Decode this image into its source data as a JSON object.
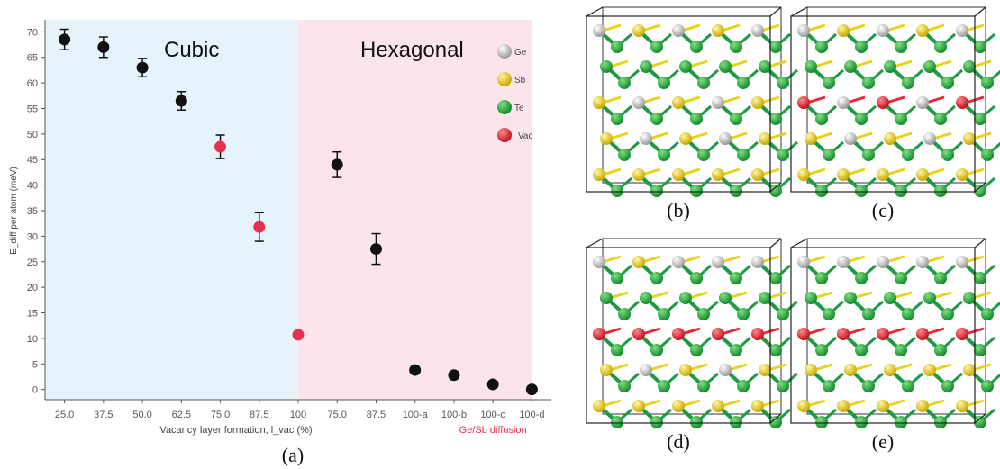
{
  "chart_data": {
    "type": "scatter",
    "panel_label": "(a)",
    "title": "",
    "xlabel": "Vacancy layer formation, l_vac (%)",
    "ylabel": "E_diff per atom (meV)",
    "ylim": [
      -2,
      72
    ],
    "yticks": [
      0,
      5,
      10,
      15,
      20,
      25,
      30,
      35,
      40,
      45,
      50,
      55,
      60,
      65,
      70
    ],
    "categories": [
      "25.0",
      "37.5",
      "50.0",
      "62.5",
      "75.0",
      "87.5",
      "100",
      "75.0",
      "87.5",
      "100-a",
      "100-b",
      "100-c",
      "100-d"
    ],
    "grid": false,
    "regions": [
      {
        "label": "Cubic",
        "from": 0,
        "to": 6.5,
        "color": "#e6f3fb"
      },
      {
        "label": "Hexagonal",
        "from": 6.5,
        "to": 12.5,
        "color": "#fbe5ea"
      }
    ],
    "annotation": "Ge/Sb diffusion",
    "series": [
      {
        "color": "#111111",
        "points": [
          {
            "i": 0,
            "y": 68.5,
            "err": 2.0
          },
          {
            "i": 1,
            "y": 67.0,
            "err": 2.0
          },
          {
            "i": 2,
            "y": 63.0,
            "err": 1.8
          },
          {
            "i": 3,
            "y": 56.5,
            "err": 1.8
          },
          {
            "i": 7,
            "y": 44.0,
            "err": 2.5
          },
          {
            "i": 8,
            "y": 27.5,
            "err": 3.0
          },
          {
            "i": 9,
            "y": 3.8,
            "err": 0
          },
          {
            "i": 10,
            "y": 2.8,
            "err": 0
          },
          {
            "i": 11,
            "y": 1.0,
            "err": 0
          },
          {
            "i": 12,
            "y": 0.0,
            "err": 0
          }
        ]
      },
      {
        "color": "#e8304f",
        "points": [
          {
            "i": 4,
            "y": 47.5,
            "err": 2.3
          },
          {
            "i": 5,
            "y": 31.8,
            "err": 2.8
          },
          {
            "i": 6,
            "y": 10.7,
            "err": 0
          }
        ]
      }
    ],
    "legend": [
      {
        "label": "Ge",
        "color": "#e2e2e2"
      },
      {
        "label": "Sb",
        "color": "#e8d21a"
      },
      {
        "label": "Te",
        "color": "#1e9a45"
      },
      {
        "label": "Vac",
        "color": "#e8283a"
      }
    ]
  },
  "structures": [
    {
      "label": "(b)",
      "top": [
        "ge",
        "sb",
        "ge",
        "sb"
      ],
      "mid": "mixed",
      "row2": "mixed"
    },
    {
      "label": "(c)",
      "top": [
        "ge",
        "sb",
        "ge",
        "sb"
      ],
      "mid": "vac-mixed",
      "row2": "mixed"
    },
    {
      "label": "(d)",
      "top": [
        "ge",
        "sb",
        "ge",
        "ge"
      ],
      "mid": "vac-layer",
      "row2": "mixed"
    },
    {
      "label": "(e)",
      "top": [
        "ge",
        "ge",
        "ge",
        "ge"
      ],
      "mid": "vac-layer",
      "row2": "sb"
    }
  ]
}
